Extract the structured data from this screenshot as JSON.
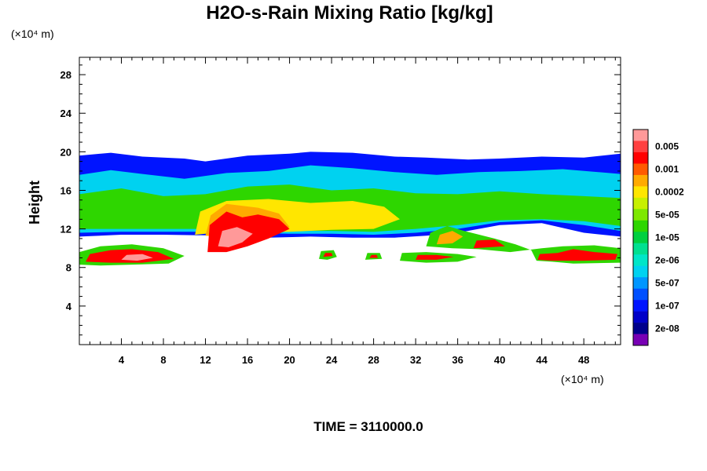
{
  "chart_data": {
    "type": "heatmap",
    "title": "H2O-s-Rain Mixing Ratio [kg/kg]",
    "xlabel": "",
    "ylabel": "Height",
    "x_unit": "(×10⁴ m)",
    "y_unit": "(×10⁴ m)",
    "xlim": [
      0,
      51.5
    ],
    "ylim": [
      0,
      29.8
    ],
    "x_ticks": [
      4,
      8,
      12,
      16,
      20,
      24,
      28,
      32,
      36,
      40,
      44,
      48
    ],
    "y_ticks": [
      4,
      8,
      12,
      16,
      20,
      24,
      28
    ],
    "footer": "TIME = 3110000.0",
    "colorbar": {
      "levels": [
        {
          "color": "#ff9999",
          "label": ""
        },
        {
          "color": "#ff4040",
          "label": "0.005"
        },
        {
          "color": "#ff0000",
          "label": ""
        },
        {
          "color": "#ff5a00",
          "label": "0.001"
        },
        {
          "color": "#ffaa00",
          "label": ""
        },
        {
          "color": "#ffe600",
          "label": "0.0002"
        },
        {
          "color": "#c8f000",
          "label": ""
        },
        {
          "color": "#7ee800",
          "label": "5e-05"
        },
        {
          "color": "#2ed600",
          "label": ""
        },
        {
          "color": "#00d040",
          "label": "1e-05"
        },
        {
          "color": "#00e090",
          "label": ""
        },
        {
          "color": "#00e6c8",
          "label": "2e-06"
        },
        {
          "color": "#00d2f0",
          "label": ""
        },
        {
          "color": "#0096ff",
          "label": "5e-07"
        },
        {
          "color": "#0050ff",
          "label": ""
        },
        {
          "color": "#0014ff",
          "label": "1e-07"
        },
        {
          "color": "#0000c8",
          "label": ""
        },
        {
          "color": "#00008c",
          "label": "2e-08"
        },
        {
          "color": "#7800b4",
          "label": ""
        }
      ]
    },
    "regions": [
      {
        "name": "upper-cloud-blue",
        "level": 15,
        "poly": [
          [
            0,
            11.2
          ],
          [
            0,
            19.6
          ],
          [
            3,
            19.9
          ],
          [
            6,
            19.5
          ],
          [
            10,
            19.3
          ],
          [
            12,
            19.0
          ],
          [
            16,
            19.6
          ],
          [
            20,
            19.8
          ],
          [
            22,
            20.0
          ],
          [
            26,
            19.9
          ],
          [
            30,
            19.5
          ],
          [
            33,
            19.4
          ],
          [
            37,
            19.2
          ],
          [
            40,
            19.3
          ],
          [
            44,
            19.5
          ],
          [
            48,
            19.4
          ],
          [
            51.5,
            19.8
          ],
          [
            51.5,
            11.2
          ],
          [
            48,
            11.6
          ],
          [
            44,
            12.6
          ],
          [
            40,
            12.4
          ],
          [
            36,
            11.6
          ],
          [
            33,
            11.3
          ],
          [
            30,
            11.1
          ],
          [
            26,
            11.1
          ],
          [
            22,
            11.2
          ],
          [
            18,
            11.1
          ],
          [
            14,
            11.3
          ],
          [
            8,
            11.4
          ],
          [
            4,
            11.4
          ]
        ]
      },
      {
        "name": "upper-cloud-cyan",
        "level": 12,
        "poly": [
          [
            0,
            11.6
          ],
          [
            0,
            17.6
          ],
          [
            3,
            18.1
          ],
          [
            6,
            17.7
          ],
          [
            10,
            17.2
          ],
          [
            14,
            17.8
          ],
          [
            18,
            18.0
          ],
          [
            22,
            18.6
          ],
          [
            26,
            18.3
          ],
          [
            30,
            17.9
          ],
          [
            34,
            17.6
          ],
          [
            38,
            17.9
          ],
          [
            42,
            18.0
          ],
          [
            46,
            18.2
          ],
          [
            51.5,
            17.7
          ],
          [
            51.5,
            11.8
          ],
          [
            48,
            12.4
          ],
          [
            44,
            12.9
          ],
          [
            40,
            12.7
          ],
          [
            36,
            12.0
          ],
          [
            32,
            11.6
          ],
          [
            28,
            11.4
          ],
          [
            24,
            11.5
          ],
          [
            20,
            11.5
          ],
          [
            16,
            11.6
          ],
          [
            12,
            11.7
          ],
          [
            8,
            11.7
          ],
          [
            4,
            11.7
          ]
        ]
      },
      {
        "name": "upper-cloud-green",
        "level": 8,
        "poly": [
          [
            0,
            12.0
          ],
          [
            0,
            15.6
          ],
          [
            4,
            16.2
          ],
          [
            8,
            15.4
          ],
          [
            12,
            15.6
          ],
          [
            16,
            16.4
          ],
          [
            20,
            16.6
          ],
          [
            24,
            16.0
          ],
          [
            28,
            16.2
          ],
          [
            32,
            15.7
          ],
          [
            36,
            15.6
          ],
          [
            40,
            15.9
          ],
          [
            44,
            15.6
          ],
          [
            48,
            15.4
          ],
          [
            51.5,
            15.2
          ],
          [
            51.5,
            12.3
          ],
          [
            48,
            12.8
          ],
          [
            44,
            13.0
          ],
          [
            40,
            12.9
          ],
          [
            36,
            12.4
          ],
          [
            32,
            12.0
          ],
          [
            28,
            11.7
          ],
          [
            24,
            11.8
          ],
          [
            20,
            11.8
          ],
          [
            16,
            11.9
          ],
          [
            12,
            12.0
          ],
          [
            8,
            12.0
          ],
          [
            4,
            12.0
          ]
        ]
      },
      {
        "name": "mid-yellow",
        "level": 5,
        "poly": [
          [
            11,
            11.4
          ],
          [
            11.5,
            13.8
          ],
          [
            14,
            14.9
          ],
          [
            18,
            15.1
          ],
          [
            22,
            14.7
          ],
          [
            26,
            14.9
          ],
          [
            29,
            14.3
          ],
          [
            30.5,
            13.0
          ],
          [
            28,
            12.0
          ],
          [
            24,
            11.9
          ],
          [
            20,
            11.7
          ],
          [
            16,
            11.6
          ],
          [
            12,
            11.5
          ]
        ]
      },
      {
        "name": "mid-orange",
        "level": 4,
        "poly": [
          [
            12,
            11.3
          ],
          [
            12.5,
            13.4
          ],
          [
            14,
            14.6
          ],
          [
            17,
            14.2
          ],
          [
            19,
            13.6
          ],
          [
            20,
            12.2
          ],
          [
            18,
            11.4
          ],
          [
            15,
            11.1
          ]
        ]
      },
      {
        "name": "core-red",
        "level": 2,
        "poly": [
          [
            12.2,
            9.6
          ],
          [
            12.4,
            12.4
          ],
          [
            14,
            13.8
          ],
          [
            15.5,
            13.2
          ],
          [
            17,
            13.5
          ],
          [
            19,
            13.0
          ],
          [
            20,
            12.0
          ],
          [
            18,
            11.0
          ],
          [
            16,
            10.2
          ],
          [
            14,
            9.6
          ]
        ]
      },
      {
        "name": "core-pink",
        "level": 0,
        "poly": [
          [
            13.2,
            10.2
          ],
          [
            13.6,
            11.8
          ],
          [
            15,
            12.2
          ],
          [
            16.5,
            11.5
          ],
          [
            15.5,
            10.6
          ],
          [
            14.2,
            10.1
          ]
        ]
      },
      {
        "name": "low-band-left-green",
        "level": 8,
        "poly": [
          [
            0,
            8.3
          ],
          [
            0,
            9.6
          ],
          [
            2,
            10.2
          ],
          [
            5,
            10.4
          ],
          [
            8,
            10.0
          ],
          [
            10,
            9.2
          ],
          [
            8.5,
            8.4
          ],
          [
            5,
            8.3
          ],
          [
            2,
            8.2
          ]
        ]
      },
      {
        "name": "low-band-left-red",
        "level": 2,
        "poly": [
          [
            0.6,
            8.6
          ],
          [
            1,
            9.4
          ],
          [
            3,
            9.8
          ],
          [
            5,
            9.9
          ],
          [
            7.5,
            9.6
          ],
          [
            9,
            8.9
          ],
          [
            6,
            8.5
          ],
          [
            3,
            8.5
          ]
        ]
      },
      {
        "name": "low-band-left-pink",
        "level": 0,
        "poly": [
          [
            4,
            8.8
          ],
          [
            4.5,
            9.3
          ],
          [
            6,
            9.4
          ],
          [
            7,
            9.0
          ],
          [
            5.5,
            8.7
          ]
        ]
      },
      {
        "name": "speck-23",
        "level": 8,
        "poly": [
          [
            22.8,
            8.9
          ],
          [
            23,
            9.7
          ],
          [
            24.2,
            9.8
          ],
          [
            24.5,
            9.1
          ],
          [
            23.6,
            8.8
          ]
        ]
      },
      {
        "name": "speck-23-red",
        "level": 2,
        "poly": [
          [
            23.2,
            9.1
          ],
          [
            23.4,
            9.5
          ],
          [
            24,
            9.5
          ],
          [
            24.1,
            9.2
          ]
        ]
      },
      {
        "name": "speck-28",
        "level": 8,
        "poly": [
          [
            27.2,
            8.8
          ],
          [
            27.4,
            9.5
          ],
          [
            28.6,
            9.5
          ],
          [
            28.8,
            8.9
          ]
        ]
      },
      {
        "name": "speck-28-red",
        "level": 2,
        "poly": [
          [
            27.6,
            9.0
          ],
          [
            27.8,
            9.3
          ],
          [
            28.3,
            9.3
          ],
          [
            28.4,
            9.0
          ]
        ]
      },
      {
        "name": "low-mid-green",
        "level": 8,
        "poly": [
          [
            30.5,
            8.7
          ],
          [
            30.7,
            9.5
          ],
          [
            33,
            9.6
          ],
          [
            36,
            9.4
          ],
          [
            37.8,
            9.1
          ],
          [
            36,
            8.6
          ],
          [
            33,
            8.5
          ]
        ]
      },
      {
        "name": "low-mid-red",
        "level": 2,
        "poly": [
          [
            32,
            8.8
          ],
          [
            32.2,
            9.3
          ],
          [
            34,
            9.3
          ],
          [
            35.6,
            9.1
          ],
          [
            34,
            8.8
          ]
        ]
      },
      {
        "name": "right-ledge-green",
        "level": 8,
        "poly": [
          [
            33,
            10.2
          ],
          [
            33.4,
            11.6
          ],
          [
            35,
            12.3
          ],
          [
            36.6,
            11.8
          ],
          [
            39.5,
            11.0
          ],
          [
            41.5,
            10.4
          ],
          [
            43,
            9.8
          ],
          [
            43.5,
            8.7
          ],
          [
            45,
            8.6
          ],
          [
            47,
            8.4
          ],
          [
            51.5,
            8.5
          ],
          [
            51.5,
            10.0
          ],
          [
            49,
            10.3
          ],
          [
            46,
            10.2
          ],
          [
            44,
            10.0
          ],
          [
            41,
            9.6
          ],
          [
            38,
            9.9
          ],
          [
            35.5,
            10.0
          ]
        ]
      },
      {
        "name": "right-ledge-orange",
        "level": 4,
        "poly": [
          [
            34,
            10.4
          ],
          [
            34.3,
            11.4
          ],
          [
            35.5,
            11.8
          ],
          [
            36.5,
            11.2
          ],
          [
            35.5,
            10.5
          ]
        ]
      },
      {
        "name": "right-ledge-red-a",
        "level": 2,
        "poly": [
          [
            37.5,
            10.0
          ],
          [
            37.8,
            10.8
          ],
          [
            39.5,
            10.9
          ],
          [
            40.5,
            10.2
          ]
        ]
      },
      {
        "name": "right-ledge-red-b",
        "level": 2,
        "poly": [
          [
            43.6,
            8.8
          ],
          [
            43.8,
            9.4
          ],
          [
            45.5,
            9.5
          ],
          [
            47,
            9.9
          ],
          [
            49,
            9.6
          ],
          [
            51.2,
            9.4
          ],
          [
            51,
            8.8
          ],
          [
            48,
            8.7
          ],
          [
            45,
            8.7
          ]
        ]
      }
    ]
  }
}
